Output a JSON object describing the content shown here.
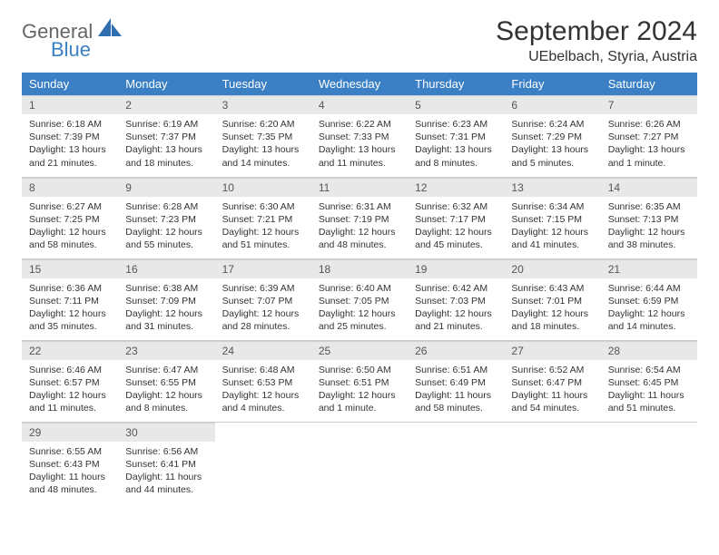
{
  "brand": {
    "text1": "General",
    "text2": "Blue",
    "icon_color": "#2f6fb0"
  },
  "header": {
    "month_title": "September 2024",
    "location": "UEbelbach, Styria, Austria"
  },
  "colors": {
    "header_bg": "#3b7fc4",
    "header_fg": "#ffffff",
    "daynum_bg": "#e8e8e8",
    "text": "#333333",
    "border": "#cccccc"
  },
  "day_labels": [
    "Sunday",
    "Monday",
    "Tuesday",
    "Wednesday",
    "Thursday",
    "Friday",
    "Saturday"
  ],
  "weeks": [
    [
      {
        "n": "1",
        "sunrise": "6:18 AM",
        "sunset": "7:39 PM",
        "daylight": "13 hours and 21 minutes."
      },
      {
        "n": "2",
        "sunrise": "6:19 AM",
        "sunset": "7:37 PM",
        "daylight": "13 hours and 18 minutes."
      },
      {
        "n": "3",
        "sunrise": "6:20 AM",
        "sunset": "7:35 PM",
        "daylight": "13 hours and 14 minutes."
      },
      {
        "n": "4",
        "sunrise": "6:22 AM",
        "sunset": "7:33 PM",
        "daylight": "13 hours and 11 minutes."
      },
      {
        "n": "5",
        "sunrise": "6:23 AM",
        "sunset": "7:31 PM",
        "daylight": "13 hours and 8 minutes."
      },
      {
        "n": "6",
        "sunrise": "6:24 AM",
        "sunset": "7:29 PM",
        "daylight": "13 hours and 5 minutes."
      },
      {
        "n": "7",
        "sunrise": "6:26 AM",
        "sunset": "7:27 PM",
        "daylight": "13 hours and 1 minute."
      }
    ],
    [
      {
        "n": "8",
        "sunrise": "6:27 AM",
        "sunset": "7:25 PM",
        "daylight": "12 hours and 58 minutes."
      },
      {
        "n": "9",
        "sunrise": "6:28 AM",
        "sunset": "7:23 PM",
        "daylight": "12 hours and 55 minutes."
      },
      {
        "n": "10",
        "sunrise": "6:30 AM",
        "sunset": "7:21 PM",
        "daylight": "12 hours and 51 minutes."
      },
      {
        "n": "11",
        "sunrise": "6:31 AM",
        "sunset": "7:19 PM",
        "daylight": "12 hours and 48 minutes."
      },
      {
        "n": "12",
        "sunrise": "6:32 AM",
        "sunset": "7:17 PM",
        "daylight": "12 hours and 45 minutes."
      },
      {
        "n": "13",
        "sunrise": "6:34 AM",
        "sunset": "7:15 PM",
        "daylight": "12 hours and 41 minutes."
      },
      {
        "n": "14",
        "sunrise": "6:35 AM",
        "sunset": "7:13 PM",
        "daylight": "12 hours and 38 minutes."
      }
    ],
    [
      {
        "n": "15",
        "sunrise": "6:36 AM",
        "sunset": "7:11 PM",
        "daylight": "12 hours and 35 minutes."
      },
      {
        "n": "16",
        "sunrise": "6:38 AM",
        "sunset": "7:09 PM",
        "daylight": "12 hours and 31 minutes."
      },
      {
        "n": "17",
        "sunrise": "6:39 AM",
        "sunset": "7:07 PM",
        "daylight": "12 hours and 28 minutes."
      },
      {
        "n": "18",
        "sunrise": "6:40 AM",
        "sunset": "7:05 PM",
        "daylight": "12 hours and 25 minutes."
      },
      {
        "n": "19",
        "sunrise": "6:42 AM",
        "sunset": "7:03 PM",
        "daylight": "12 hours and 21 minutes."
      },
      {
        "n": "20",
        "sunrise": "6:43 AM",
        "sunset": "7:01 PM",
        "daylight": "12 hours and 18 minutes."
      },
      {
        "n": "21",
        "sunrise": "6:44 AM",
        "sunset": "6:59 PM",
        "daylight": "12 hours and 14 minutes."
      }
    ],
    [
      {
        "n": "22",
        "sunrise": "6:46 AM",
        "sunset": "6:57 PM",
        "daylight": "12 hours and 11 minutes."
      },
      {
        "n": "23",
        "sunrise": "6:47 AM",
        "sunset": "6:55 PM",
        "daylight": "12 hours and 8 minutes."
      },
      {
        "n": "24",
        "sunrise": "6:48 AM",
        "sunset": "6:53 PM",
        "daylight": "12 hours and 4 minutes."
      },
      {
        "n": "25",
        "sunrise": "6:50 AM",
        "sunset": "6:51 PM",
        "daylight": "12 hours and 1 minute."
      },
      {
        "n": "26",
        "sunrise": "6:51 AM",
        "sunset": "6:49 PM",
        "daylight": "11 hours and 58 minutes."
      },
      {
        "n": "27",
        "sunrise": "6:52 AM",
        "sunset": "6:47 PM",
        "daylight": "11 hours and 54 minutes."
      },
      {
        "n": "28",
        "sunrise": "6:54 AM",
        "sunset": "6:45 PM",
        "daylight": "11 hours and 51 minutes."
      }
    ],
    [
      {
        "n": "29",
        "sunrise": "6:55 AM",
        "sunset": "6:43 PM",
        "daylight": "11 hours and 48 minutes."
      },
      {
        "n": "30",
        "sunrise": "6:56 AM",
        "sunset": "6:41 PM",
        "daylight": "11 hours and 44 minutes."
      },
      null,
      null,
      null,
      null,
      null
    ]
  ],
  "labels": {
    "sunrise": "Sunrise:",
    "sunset": "Sunset:",
    "daylight": "Daylight:"
  }
}
